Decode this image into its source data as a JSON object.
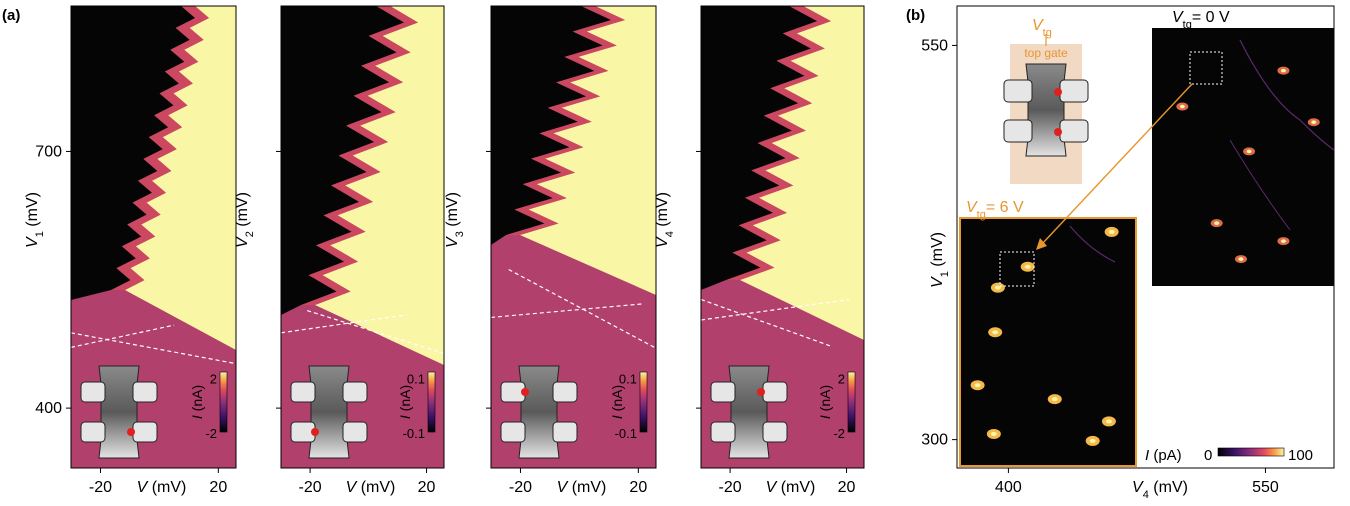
{
  "chart_data": {
    "type": "heatmap",
    "panel_a": {
      "label": "(a)",
      "shared_ylim": [
        330,
        870
      ],
      "y_ticks": [
        400,
        700
      ],
      "x_ticks": [
        -20,
        20
      ],
      "x_tick_labels": [
        "-20",
        "20"
      ],
      "xlabel_italic": "V",
      "xlabel_unit": " (mV)",
      "subplots": [
        {
          "ylabel_var": "V",
          "ylabel_sub": "1",
          "ylabel_unit": " (mV)",
          "colorbar": {
            "label": "I (nA)",
            "max": "2",
            "min": "-2"
          },
          "dot_position": "bottom-right",
          "dashed_lines": [
            [
              [
                -30,
                471
              ],
              [
                5,
                497
              ]
            ],
            [
              [
                -30,
                488
              ],
              [
                26,
                452
              ]
            ]
          ]
        },
        {
          "ylabel_var": "V",
          "ylabel_sub": "2",
          "ylabel_unit": " (mV)",
          "colorbar": {
            "label": "I (nA)",
            "max": "0.1",
            "min": "-0.1"
          },
          "dot_position": "bottom-left",
          "dashed_lines": [
            [
              [
                -30,
                488
              ],
              [
                13,
                509
              ]
            ],
            [
              [
                -21,
                514
              ],
              [
                26,
                464
              ]
            ]
          ]
        },
        {
          "ylabel_var": "V",
          "ylabel_sub": "3",
          "ylabel_unit": " (mV)",
          "colorbar": {
            "label": "I (nA)",
            "max": "0.1",
            "min": "-0.1"
          },
          "dot_position": "top-left",
          "dashed_lines": [
            [
              [
                -30,
                506
              ],
              [
                22,
                522
              ]
            ],
            [
              [
                -24,
                562
              ],
              [
                26,
                470
              ]
            ]
          ]
        },
        {
          "ylabel_var": "V",
          "ylabel_sub": "4",
          "ylabel_unit": " (mV)",
          "colorbar": {
            "label": "I (nA)",
            "max": "2",
            "min": "-2"
          },
          "dot_position": "top-right",
          "dashed_lines": [
            [
              [
                -30,
                503
              ],
              [
                21,
                527
              ]
            ],
            [
              [
                -30,
                527
              ],
              [
                15,
                472
              ]
            ]
          ]
        }
      ]
    },
    "panel_b": {
      "label": "(b)",
      "xlabel_var": "V",
      "xlabel_sub": "4",
      "xlabel_unit": " (mV)",
      "x_ticks": [
        400,
        550
      ],
      "ylabel_var": "V",
      "ylabel_sub": "1",
      "ylabel_unit": " (mV)",
      "y_ticks": [
        300,
        550
      ],
      "inset_label_0_var": "V",
      "inset_label_0_sub": "tg",
      "inset_label_0_value": "= 0 V",
      "inset_label_6_var": "V",
      "inset_label_6_sub": "tg",
      "inset_label_6_value": "= 6 V",
      "schematic_var": "V",
      "schematic_sub": "tg",
      "schematic_gate_label": "top gate",
      "colorbar": {
        "label": "I (pA)",
        "min": "0",
        "max": "100"
      },
      "peaks_vtg6": [
        [
          396,
          378
        ],
        [
          383,
          340
        ],
        [
          440,
          330
        ],
        [
          395,
          305
        ],
        [
          468,
          300
        ],
        [
          480,
          314
        ],
        [
          420,
          425
        ],
        [
          482,
          450
        ],
        [
          398,
          410
        ]
      ],
      "peaks_vtg0": [
        [
          515,
          540
        ],
        [
          565,
          556
        ],
        [
          548,
          520
        ],
        [
          580,
          533
        ],
        [
          532,
          488
        ],
        [
          544,
          472
        ],
        [
          565,
          480
        ]
      ]
    },
    "colors": {
      "dark": "#050505",
      "bright": "#f9f6a6",
      "magenta": "#c8406a",
      "background_pink": "#b0406a",
      "orange_annotation": "#e8962e"
    }
  }
}
